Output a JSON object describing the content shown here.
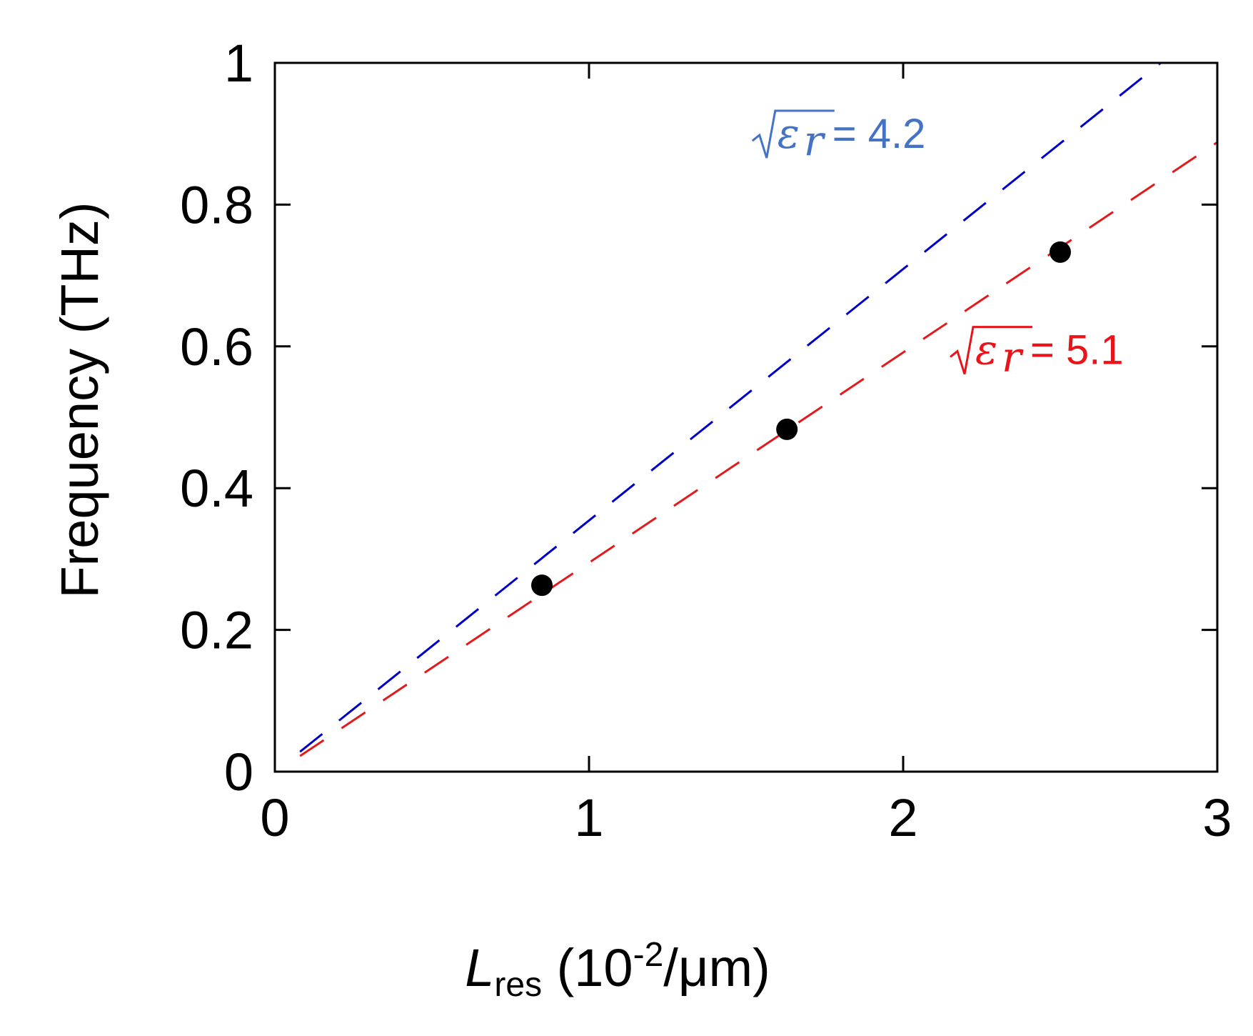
{
  "chart_data": {
    "type": "scatter",
    "xlabel": {
      "main": "L",
      "sub": "res",
      "unit_pre": " (10",
      "unit_sup": "-2",
      "unit_post": "/μm)"
    },
    "ylabel": "Frequency (THz)",
    "xlim": [
      0,
      3
    ],
    "ylim": [
      0,
      1
    ],
    "xticks": [
      0,
      1,
      2,
      3
    ],
    "yticks": [
      0,
      0.2,
      0.4,
      0.6,
      0.8,
      1
    ],
    "xtick_labels": [
      "0",
      "1",
      "2",
      "3"
    ],
    "ytick_labels": [
      "0",
      "0.2",
      "0.4",
      "0.6",
      "0.8",
      "1"
    ],
    "grid": false,
    "points": [
      {
        "x": 0.85,
        "y": 0.263
      },
      {
        "x": 1.63,
        "y": 0.483
      },
      {
        "x": 2.5,
        "y": 0.733
      }
    ],
    "lines": [
      {
        "style": "dashed",
        "color": "#0000cc",
        "x": [
          0.08,
          2.82
        ],
        "y": [
          0.028,
          1.0
        ],
        "annotation": {
          "symbol": "ε",
          "subscript": "r",
          "text": " = 4.2",
          "color": "#4472c4",
          "anchor_x": 1.52,
          "anchor_y": 0.88
        }
      },
      {
        "style": "dashed",
        "color": "#e31a1c",
        "x": [
          0.08,
          3.0
        ],
        "y": [
          0.022,
          0.888
        ],
        "annotation": {
          "symbol": "ε",
          "subscript": "r",
          "text": " = 5.1",
          "color": "#e8141a",
          "anchor_x": 2.15,
          "anchor_y": 0.575
        }
      }
    ],
    "marker_color": "#000000"
  }
}
